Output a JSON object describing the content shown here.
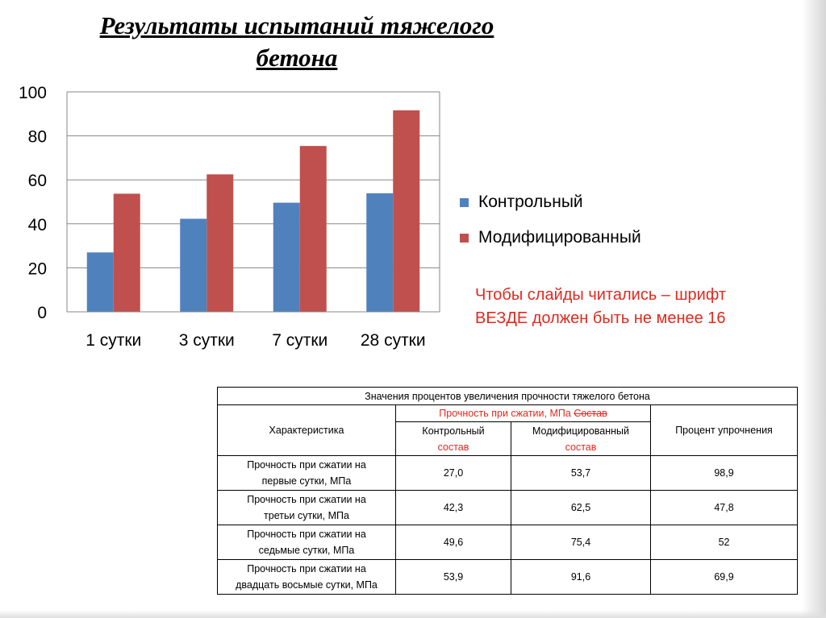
{
  "slide": {
    "title_line1": "Результаты испытаний тяжелого",
    "title_line2": "бетона",
    "note_line1": "Чтобы слайды читались – шрифт",
    "note_line2": "ВЕЗДЕ должен быть не менее 16",
    "note_color": "#e3281e"
  },
  "chart_data": {
    "type": "bar",
    "categories": [
      "1 сутки",
      "3 сутки",
      "7 сутки",
      "28 сутки"
    ],
    "series": [
      {
        "name": "Контрольный",
        "values": [
          27.0,
          42.3,
          49.6,
          53.9
        ],
        "color": "#4f81bd"
      },
      {
        "name": "Модифицированный",
        "values": [
          53.7,
          62.5,
          75.4,
          91.6
        ],
        "color": "#c0504d"
      }
    ],
    "yticks": [
      "0",
      "20",
      "40",
      "60",
      "80",
      "100"
    ],
    "ylim": [
      0,
      100
    ],
    "grid": true,
    "legend_position": "right"
  },
  "table": {
    "caption": "Значения процентов увеличения прочности тяжелого бетона",
    "header_characteristic": "Характеристика",
    "header_strength": "Прочность при сжатии, МПа",
    "header_strength_struck": "Состав",
    "header_percent": "Процент упрочнения",
    "sub_control": "Контрольный",
    "sub_modified": "Модифицированный",
    "sub_composition": "состав",
    "rows": [
      {
        "line1": "Прочность при сжатии на",
        "line2": "первые сутки, МПа",
        "control": "27,0",
        "modified": "53,7",
        "percent": "98,9"
      },
      {
        "line1": "Прочность при сжатии на",
        "line2": "третьи сутки, МПа",
        "control": "42,3",
        "modified": "62,5",
        "percent": "47,8"
      },
      {
        "line1": "Прочность при сжатии на",
        "line2": "седьмые сутки, МПа",
        "control": "49,6",
        "modified": "75,4",
        "percent": "52"
      },
      {
        "line1": "Прочность при сжатии на",
        "line2": "двадцать восьмые сутки, МПа",
        "control": "53,9",
        "modified": "91,6",
        "percent": "69,9"
      }
    ]
  }
}
